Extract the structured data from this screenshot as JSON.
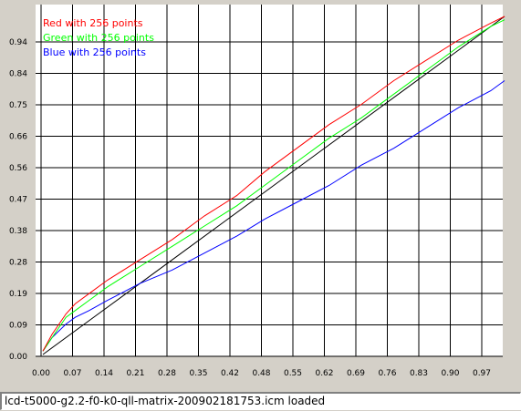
{
  "status_bar": {
    "text": "lcd-t5000-g2.2-f0-k0-qll-matrix-200902181753.icm loaded"
  },
  "colors": {
    "background": "#d4d0c8",
    "plot_background": "#ffffff",
    "grid": "#000000",
    "red": "#ff0000",
    "green": "#00ff00",
    "blue": "#0000ff",
    "reference": "#000000"
  },
  "chart_data": {
    "type": "line",
    "title": "",
    "xlabel": "",
    "ylabel": "",
    "xlim": [
      0,
      1
    ],
    "ylim": [
      0,
      1
    ],
    "grid": true,
    "legend_placement": "top-left",
    "x_ticks": [
      "0.00",
      "0.07",
      "0.14",
      "0.21",
      "0.28",
      "0.35",
      "0.42",
      "0.48",
      "0.55",
      "0.62",
      "0.69",
      "0.76",
      "0.83",
      "0.90",
      "0.97"
    ],
    "y_ticks": [
      "0.00",
      "0.09",
      "0.19",
      "0.28",
      "0.38",
      "0.47",
      "0.56",
      "0.66",
      "0.75",
      "0.84",
      "0.94"
    ],
    "series": [
      {
        "name": "Red with 256 points",
        "color": "#ff0000",
        "x": [
          0,
          0.02,
          0.05,
          0.07,
          0.1,
          0.14,
          0.21,
          0.28,
          0.35,
          0.42,
          0.48,
          0.55,
          0.62,
          0.69,
          0.76,
          0.83,
          0.9,
          0.97,
          1.0
        ],
        "y": [
          0.01,
          0.06,
          0.12,
          0.15,
          0.18,
          0.22,
          0.28,
          0.34,
          0.41,
          0.47,
          0.54,
          0.61,
          0.68,
          0.74,
          0.81,
          0.87,
          0.93,
          0.98,
          1.0
        ]
      },
      {
        "name": "Green with 256 points",
        "color": "#00ff00",
        "x": [
          0,
          0.02,
          0.05,
          0.07,
          0.1,
          0.14,
          0.21,
          0.28,
          0.35,
          0.42,
          0.48,
          0.55,
          0.62,
          0.69,
          0.76,
          0.83,
          0.9,
          0.97,
          1.0
        ],
        "y": [
          0.01,
          0.05,
          0.11,
          0.13,
          0.16,
          0.2,
          0.26,
          0.32,
          0.38,
          0.44,
          0.5,
          0.57,
          0.64,
          0.7,
          0.77,
          0.84,
          0.91,
          0.97,
          0.99
        ]
      },
      {
        "name": "Blue with 256 points",
        "color": "#0000ff",
        "x": [
          0,
          0.02,
          0.05,
          0.07,
          0.1,
          0.14,
          0.21,
          0.28,
          0.35,
          0.42,
          0.48,
          0.55,
          0.62,
          0.69,
          0.76,
          0.83,
          0.9,
          0.97,
          1.0
        ],
        "y": [
          0.01,
          0.05,
          0.09,
          0.11,
          0.13,
          0.16,
          0.21,
          0.25,
          0.3,
          0.35,
          0.4,
          0.45,
          0.5,
          0.56,
          0.61,
          0.67,
          0.73,
          0.78,
          0.81
        ]
      },
      {
        "color": "#000000",
        "x": [
          0,
          0.1,
          0.2,
          0.3,
          0.4,
          0.5,
          0.6,
          0.7,
          0.8,
          0.9,
          1.0
        ],
        "y": [
          0,
          0.1,
          0.2,
          0.3,
          0.4,
          0.5,
          0.6,
          0.7,
          0.8,
          0.9,
          1.0
        ]
      }
    ]
  }
}
